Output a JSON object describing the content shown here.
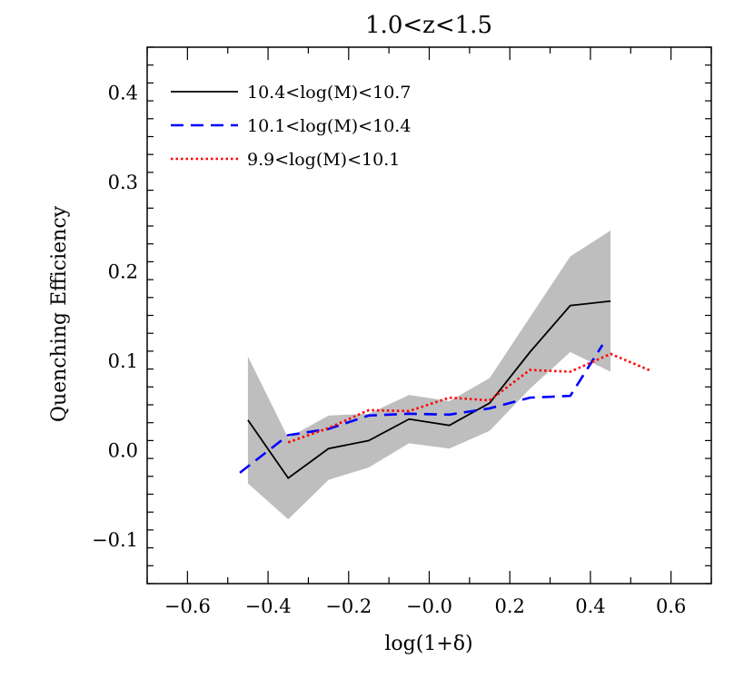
{
  "chart_data": {
    "type": "line",
    "title": "1.0<z<1.5",
    "xlabel": "log(1+δ)",
    "ylabel": "Quenching Efficiency",
    "xlim": [
      -0.7,
      0.7
    ],
    "ylim": [
      -0.15,
      0.45
    ],
    "x_ticks": [
      -0.6,
      -0.4,
      -0.2,
      0.0,
      0.2,
      0.4,
      0.6
    ],
    "x_tick_labels": [
      "−0.6",
      "−0.4",
      "−0.2",
      "−0.0",
      "0.2",
      "0.4",
      "0.6"
    ],
    "y_ticks": [
      -0.1,
      0.0,
      0.1,
      0.2,
      0.3,
      0.4
    ],
    "y_tick_labels": [
      "−0.1",
      "0.0",
      "0.1",
      "0.2",
      "0.3",
      "0.4"
    ],
    "grid": false,
    "legend_position": "top-left",
    "band": {
      "x": [
        -0.45,
        -0.35,
        -0.25,
        -0.15,
        -0.05,
        0.05,
        0.15,
        0.25,
        0.35,
        0.45
      ],
      "upper": [
        0.104,
        0.013,
        0.038,
        0.04,
        0.061,
        0.054,
        0.08,
        0.148,
        0.216,
        0.245
      ],
      "lower": [
        -0.038,
        -0.078,
        -0.034,
        -0.02,
        0.007,
        0.001,
        0.021,
        0.068,
        0.109,
        0.087
      ],
      "color": "#bebebe"
    },
    "series": [
      {
        "name": "10.4<log(M)<10.7",
        "color": "#000000",
        "dash": "solid",
        "x": [
          -0.45,
          -0.35,
          -0.25,
          -0.15,
          -0.05,
          0.05,
          0.15,
          0.25,
          0.35,
          0.45
        ],
        "y": [
          0.033,
          -0.032,
          0.001,
          0.01,
          0.034,
          0.027,
          0.052,
          0.109,
          0.161,
          0.166
        ]
      },
      {
        "name": "10.1<log(M)<10.4",
        "color": "#0000ff",
        "dash": "dashed",
        "x": [
          -0.47,
          -0.35,
          -0.25,
          -0.15,
          -0.05,
          0.05,
          0.15,
          0.25,
          0.35,
          0.43
        ],
        "y": [
          -0.026,
          0.016,
          0.023,
          0.038,
          0.04,
          0.039,
          0.046,
          0.058,
          0.06,
          0.117
        ]
      },
      {
        "name": "9.9<log(M)<10.1",
        "color": "#ff0000",
        "dash": "dotted",
        "x": [
          -0.35,
          -0.25,
          -0.15,
          -0.05,
          0.05,
          0.15,
          0.25,
          0.35,
          0.45,
          0.55
        ],
        "y": [
          0.008,
          0.024,
          0.044,
          0.043,
          0.058,
          0.055,
          0.089,
          0.087,
          0.107,
          0.088
        ]
      }
    ]
  }
}
